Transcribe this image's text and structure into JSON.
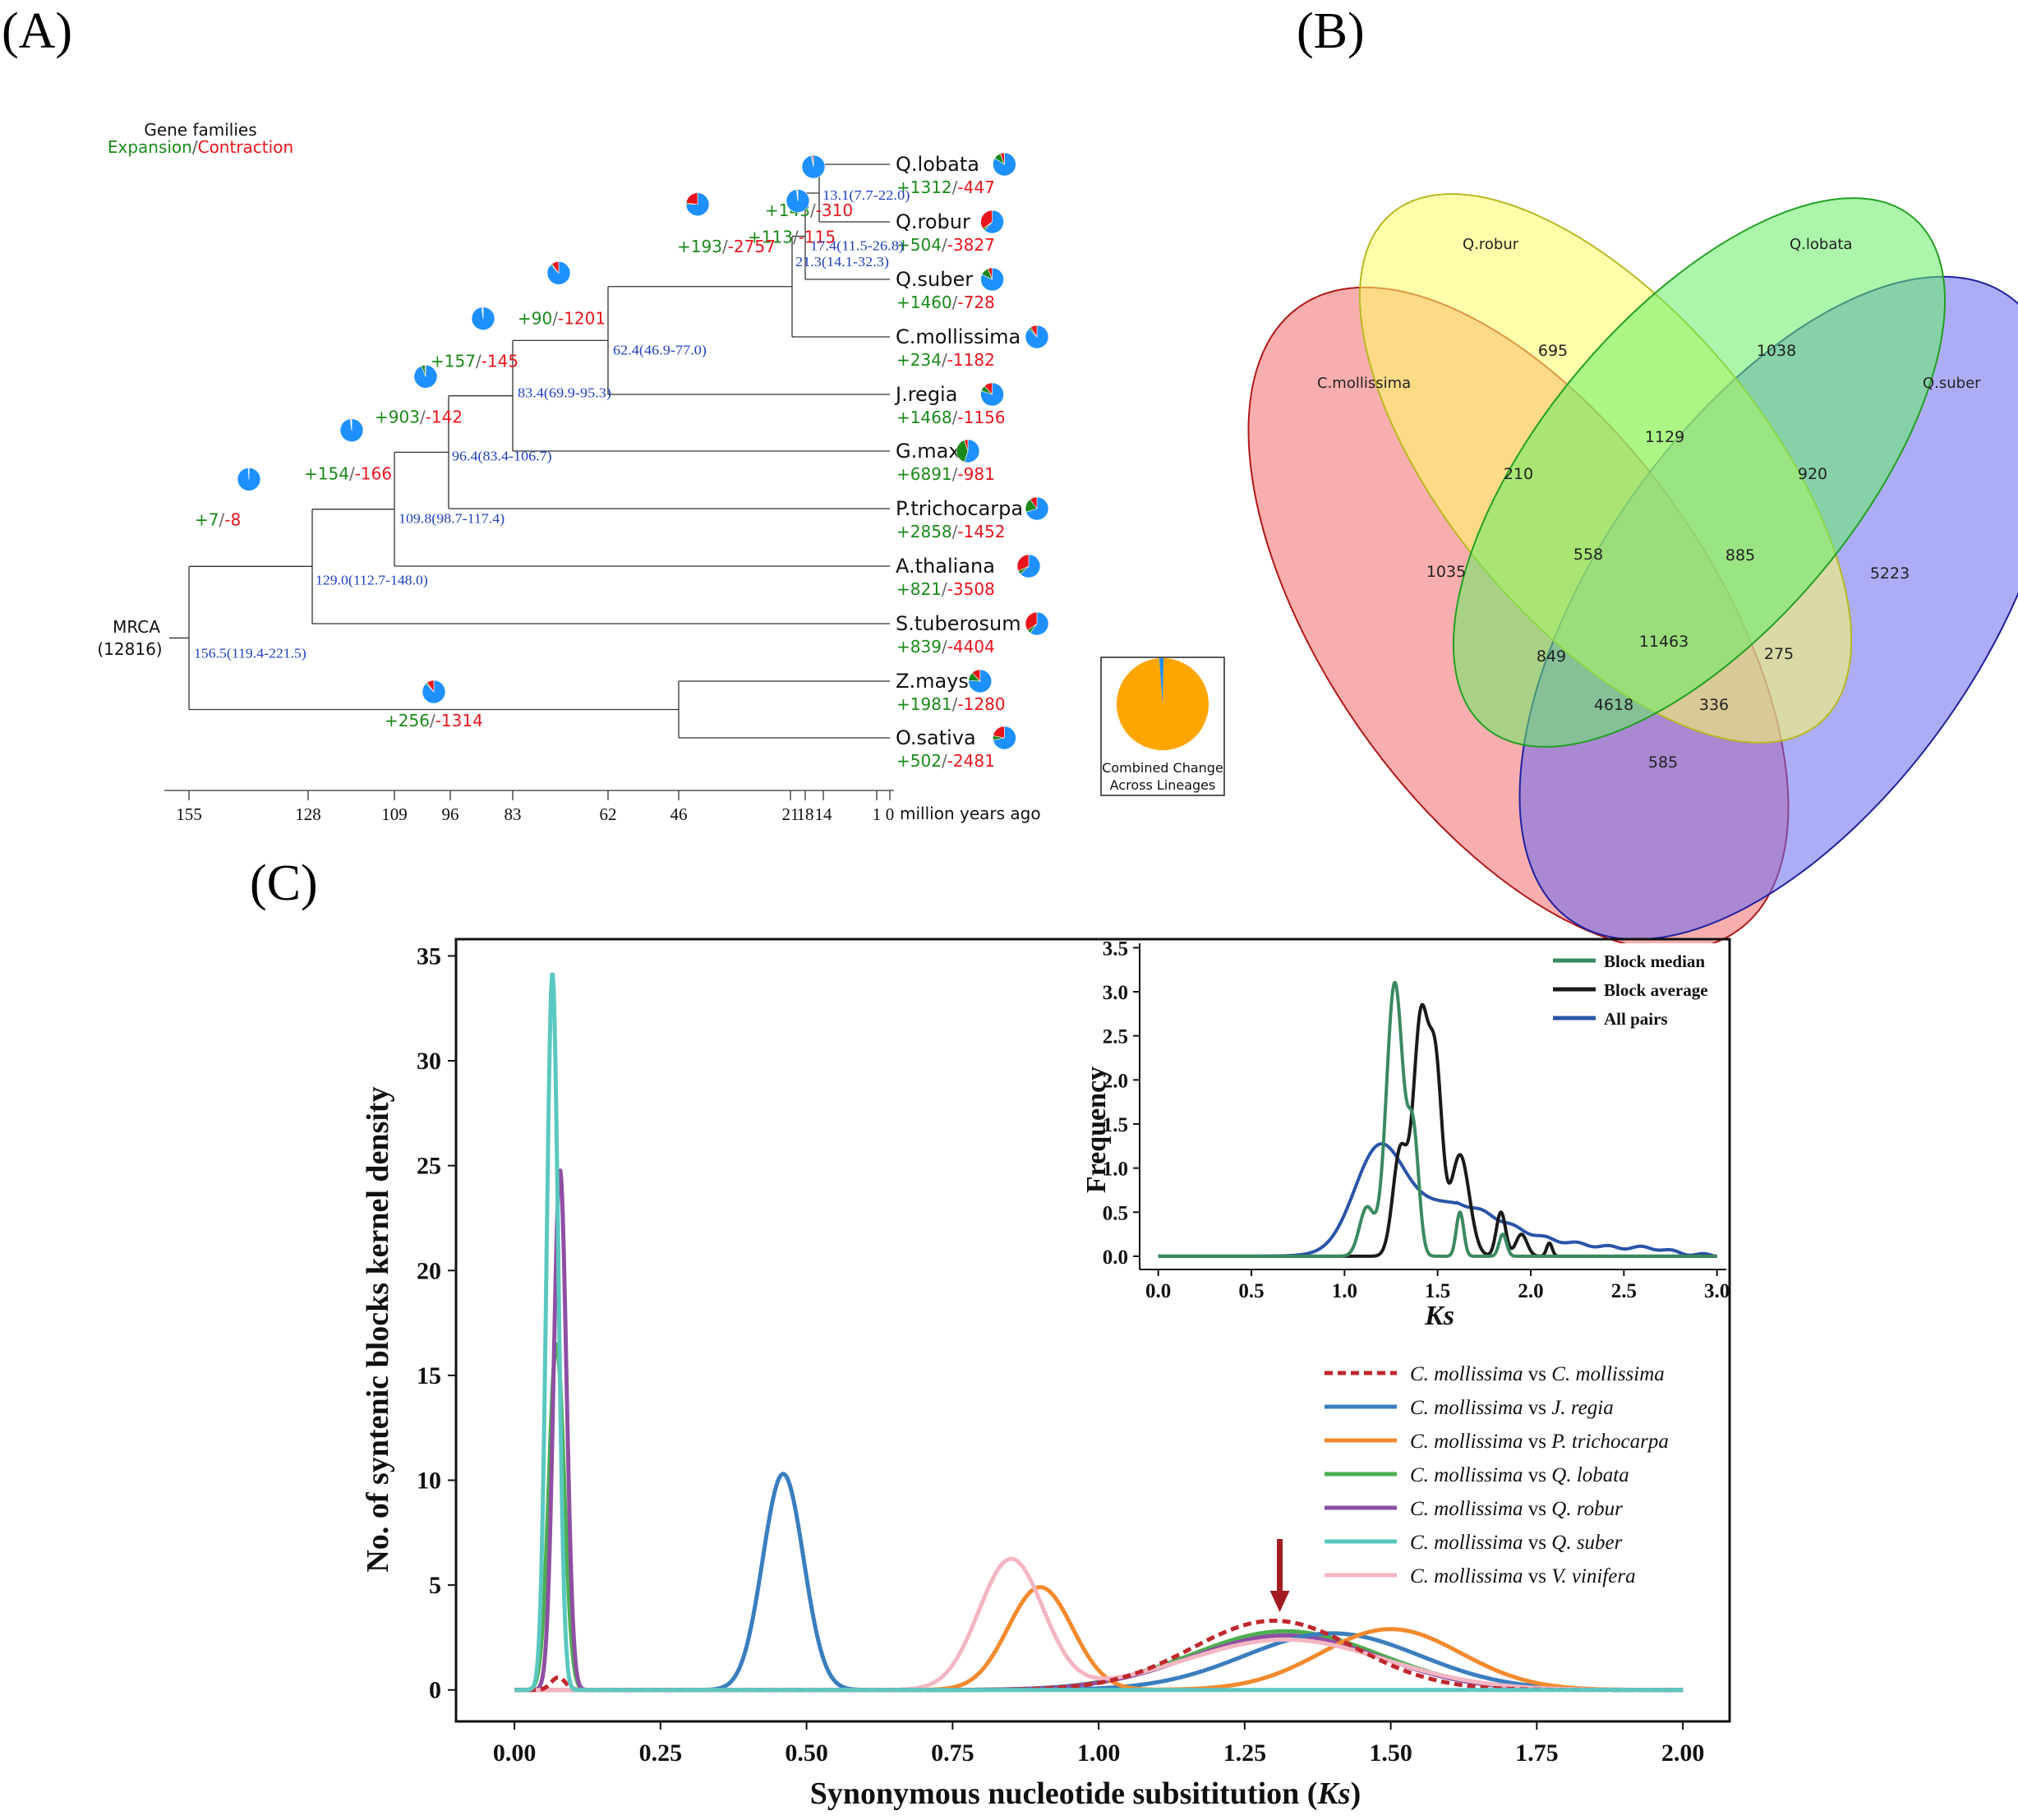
{
  "panels": {
    "a": "(A)",
    "b": "(B)",
    "c": "(C)"
  },
  "colors": {
    "expansion": "#1a8a1a",
    "contraction": "#e8141c",
    "unchanged": "#1e90ff",
    "divergence": "#1f3fbf",
    "combined": "#ffa500",
    "venn_cm": "#f36b6b",
    "venn_qr": "#ffff66",
    "venn_ql": "#66ee66",
    "venn_qs": "#6a6af0"
  },
  "tree": {
    "legend_title": "Gene families",
    "legend_expansion": "Expansion",
    "legend_sep": "/",
    "legend_contraction": "Contraction",
    "root_label": "MRCA",
    "root_count": "(12816)",
    "axis_unit": "million years ago",
    "axis_ticks": [
      "155",
      "128",
      "109",
      "96",
      "83",
      "62",
      "46",
      "21",
      "18",
      "14",
      "1",
      "0"
    ],
    "combined_label_1": "Combined Change",
    "combined_label_2": "Across Lineages",
    "taxa": [
      {
        "name": "Q.lobata",
        "exp": "+1312",
        "con": "-447",
        "pie": [
          0.84,
          0.1,
          0.06
        ]
      },
      {
        "name": "Q.robur",
        "exp": "+504",
        "con": "-3827",
        "pie": [
          0.62,
          0.03,
          0.35
        ]
      },
      {
        "name": "Q.suber",
        "exp": "+1460",
        "con": "-728",
        "pie": [
          0.82,
          0.12,
          0.06
        ]
      },
      {
        "name": "C.mollissima",
        "exp": "+234",
        "con": "-1182",
        "pie": [
          0.88,
          0.03,
          0.09
        ]
      },
      {
        "name": "J.regia",
        "exp": "+1468",
        "con": "-1156",
        "pie": [
          0.8,
          0.08,
          0.12
        ]
      },
      {
        "name": "G.max",
        "exp": "+6891",
        "con": "-981",
        "pie": [
          0.55,
          0.4,
          0.05
        ]
      },
      {
        "name": "P.trichocarpa",
        "exp": "+2858",
        "con": "-1452",
        "pie": [
          0.7,
          0.2,
          0.1
        ]
      },
      {
        "name": "A.thaliana",
        "exp": "+821",
        "con": "-3508",
        "pie": [
          0.63,
          0.05,
          0.32
        ]
      },
      {
        "name": "S.tuberosum",
        "exp": "+839",
        "con": "-4404",
        "pie": [
          0.6,
          0.05,
          0.35
        ]
      },
      {
        "name": "Z.mays",
        "exp": "+1981",
        "con": "-1280",
        "pie": [
          0.76,
          0.12,
          0.12
        ]
      },
      {
        "name": "O.sativa",
        "exp": "+502",
        "con": "-2481",
        "pie": [
          0.72,
          0.06,
          0.22
        ]
      }
    ],
    "nodes": [
      {
        "exp": "+143",
        "con": "-310",
        "div": "13.1(7.7-22.0)",
        "pie": [
          0.97,
          0.01,
          0.02
        ]
      },
      {
        "exp": "+113",
        "con": "-115",
        "div": "17.4(11.5-26.8)",
        "pie": [
          0.98,
          0.01,
          0.01
        ]
      },
      {
        "exp": "+193",
        "con": "-2757",
        "div": "21.3(14.1-32.3)",
        "pie": [
          0.75,
          0.02,
          0.23
        ]
      },
      {
        "exp": "+90",
        "con": "-1201",
        "div": "62.4(46.9-77.0)",
        "pie": [
          0.88,
          0.02,
          0.1
        ]
      },
      {
        "exp": "+157",
        "con": "-145",
        "div": "83.4(69.9-95.3)",
        "pie": [
          0.98,
          0.01,
          0.01
        ]
      },
      {
        "exp": "+903",
        "con": "-142",
        "div": "96.4(83.4-106.7)",
        "pie": [
          0.94,
          0.05,
          0.01
        ]
      },
      {
        "exp": "+154",
        "con": "-166",
        "div": "109.8(98.7-117.4)",
        "pie": [
          0.98,
          0.01,
          0.01
        ]
      },
      {
        "exp": "+7",
        "con": "-8",
        "div": "129.0(112.7-148.0)",
        "pie": [
          0.99,
          0.005,
          0.005
        ]
      },
      {
        "exp": "+256",
        "con": "-1314",
        "div": "156.5(119.4-221.5)",
        "pie": [
          0.88,
          0.02,
          0.1
        ]
      }
    ]
  },
  "venn": {
    "labels": {
      "cm": "C.mollissima",
      "qr": "Q.robur",
      "ql": "Q.lobata",
      "qs": "Q.suber"
    },
    "counts": {
      "cm_only": "1035",
      "qr_only": "695",
      "ql_only": "1038",
      "qs_only": "5223",
      "cm_qr": "210",
      "qr_ql": "1129",
      "ql_qs": "920",
      "cm_qs": "585",
      "cm_qr_ql": "558",
      "qr_ql_qs": "885",
      "cm_ql": "849",
      "qr_qs": "275",
      "all": "11463",
      "cm_ql_qs": "4618",
      "cm_qr_qs": "336"
    }
  },
  "chart_data": [
    {
      "type": "line",
      "title": "",
      "xlabel": "Synonymous nucleotide subsititution (Ks)",
      "ylabel": "No. of syntenic blocks kernel density",
      "xlim": [
        -0.1,
        2.08
      ],
      "ylim": [
        -1.5,
        35.8
      ],
      "xticks": [
        0.0,
        0.25,
        0.5,
        0.75,
        1.0,
        1.25,
        1.5,
        1.75,
        2.0
      ],
      "xtick_labels": [
        "0.00",
        "0.25",
        "0.50",
        "0.75",
        "1.00",
        "1.25",
        "1.50",
        "1.75",
        "2.00"
      ],
      "yticks": [
        0,
        5,
        10,
        15,
        20,
        25,
        30,
        35
      ],
      "ytick_labels": [
        "0",
        "5",
        "10",
        "15",
        "20",
        "25",
        "30",
        "35"
      ],
      "legend_position": "right",
      "series": [
        {
          "name": "C. mollissima vs C. mollissima",
          "prefix": "C. mollissima",
          "vs": " vs ",
          "target": "C. mollissima",
          "color": "#c0272d",
          "dashed": true,
          "peaks": [
            {
              "mu": 1.3,
              "sigma": 0.14,
              "amp": 3.3
            },
            {
              "mu": 0.075,
              "sigma": 0.012,
              "amp": 0.6
            }
          ]
        },
        {
          "name": "C. mollissima vs J. regia",
          "prefix": "C. mollissima",
          "vs": " vs ",
          "target": "J. regia",
          "color": "#3a7ebf",
          "dashed": false,
          "peaks": [
            {
              "mu": 0.46,
              "sigma": 0.035,
              "amp": 10.3
            },
            {
              "mu": 1.4,
              "sigma": 0.15,
              "amp": 2.7
            }
          ]
        },
        {
          "name": "C. mollissima vs P. trichocarpa",
          "prefix": "C. mollissima",
          "vs": " vs ",
          "target": "P. trichocarpa",
          "color": "#f28a2e",
          "dashed": false,
          "peaks": [
            {
              "mu": 0.9,
              "sigma": 0.055,
              "amp": 4.9
            },
            {
              "mu": 1.5,
              "sigma": 0.12,
              "amp": 2.9
            }
          ]
        },
        {
          "name": "C. mollissima vs Q. lobata",
          "prefix": "C. mollissima",
          "vs": " vs ",
          "target": "Q. lobata",
          "color": "#4caf50",
          "dashed": false,
          "peaks": [
            {
              "mu": 0.072,
              "sigma": 0.013,
              "amp": 16.5
            },
            {
              "mu": 1.32,
              "sigma": 0.16,
              "amp": 2.8
            }
          ]
        },
        {
          "name": "C. mollissima vs Q. robur",
          "prefix": "C. mollissima",
          "vs": " vs ",
          "target": "Q. robur",
          "color": "#8e4fa3",
          "dashed": false,
          "peaks": [
            {
              "mu": 0.078,
              "sigma": 0.011,
              "amp": 24.8
            },
            {
              "mu": 1.32,
              "sigma": 0.16,
              "amp": 2.6
            }
          ]
        },
        {
          "name": "C. mollissima vs Q. suber",
          "prefix": "C. mollissima",
          "vs": " vs ",
          "target": "Q. suber",
          "color": "#5ac8c0",
          "dashed": false,
          "peaks": [
            {
              "mu": 0.065,
              "sigma": 0.01,
              "amp": 34.2
            }
          ]
        },
        {
          "name": "C. mollissima vs V. vinifera",
          "prefix": "C. mollissima",
          "vs": " vs  ",
          "target": "V. vinifera",
          "color": "#f4b6c2",
          "dashed": false,
          "peaks": [
            {
              "mu": 0.85,
              "sigma": 0.055,
              "amp": 6.2
            },
            {
              "mu": 1.32,
              "sigma": 0.17,
              "amp": 2.4
            }
          ]
        }
      ],
      "annotations": [
        {
          "type": "arrow",
          "x": 1.31,
          "label": ""
        }
      ]
    },
    {
      "type": "line",
      "title": "",
      "xlabel": "Ks",
      "ylabel": "Frequency",
      "xlim": [
        -0.1,
        3.05
      ],
      "ylim": [
        -0.15,
        3.55
      ],
      "xticks": [
        0.0,
        0.5,
        1.0,
        1.5,
        2.0,
        2.5,
        3.0
      ],
      "xtick_labels": [
        "0.0",
        "0.5",
        "1.0",
        "1.5",
        "2.0",
        "2.5",
        "3.0"
      ],
      "yticks": [
        0.0,
        0.5,
        1.0,
        1.5,
        2.0,
        2.5,
        3.0,
        3.5
      ],
      "ytick_labels": [
        "0.0",
        "0.5",
        "1.0",
        "1.5",
        "2.0",
        "2.5",
        "3.0",
        "3.5"
      ],
      "legend_position": "top-right",
      "series": [
        {
          "name": "Block median",
          "color": "#3a8a5f",
          "peaks": [
            {
              "mu": 1.27,
              "sigma": 0.045,
              "amp": 3.1
            },
            {
              "mu": 1.37,
              "sigma": 0.03,
              "amp": 1.3
            },
            {
              "mu": 1.12,
              "sigma": 0.04,
              "amp": 0.55
            },
            {
              "mu": 1.62,
              "sigma": 0.02,
              "amp": 0.5
            },
            {
              "mu": 1.85,
              "sigma": 0.02,
              "amp": 0.25
            }
          ]
        },
        {
          "name": "Block average",
          "color": "#1a1a1a",
          "peaks": [
            {
              "mu": 1.41,
              "sigma": 0.04,
              "amp": 2.65
            },
            {
              "mu": 1.49,
              "sigma": 0.035,
              "amp": 2.0
            },
            {
              "mu": 1.3,
              "sigma": 0.04,
              "amp": 1.2
            },
            {
              "mu": 1.62,
              "sigma": 0.05,
              "amp": 1.15
            },
            {
              "mu": 1.84,
              "sigma": 0.025,
              "amp": 0.5
            },
            {
              "mu": 1.95,
              "sigma": 0.03,
              "amp": 0.25
            },
            {
              "mu": 2.1,
              "sigma": 0.015,
              "amp": 0.15
            }
          ]
        },
        {
          "name": "All pairs",
          "color": "#2a55a8",
          "peaks": [
            {
              "mu": 1.18,
              "sigma": 0.13,
              "amp": 1.02
            },
            {
              "mu": 1.55,
              "sigma": 0.28,
              "amp": 0.58
            },
            {
              "mu": 2.2,
              "sigma": 0.35,
              "amp": 0.12
            },
            {
              "mu": 2.65,
              "sigma": 0.1,
              "amp": 0.04
            }
          ]
        }
      ]
    }
  ]
}
